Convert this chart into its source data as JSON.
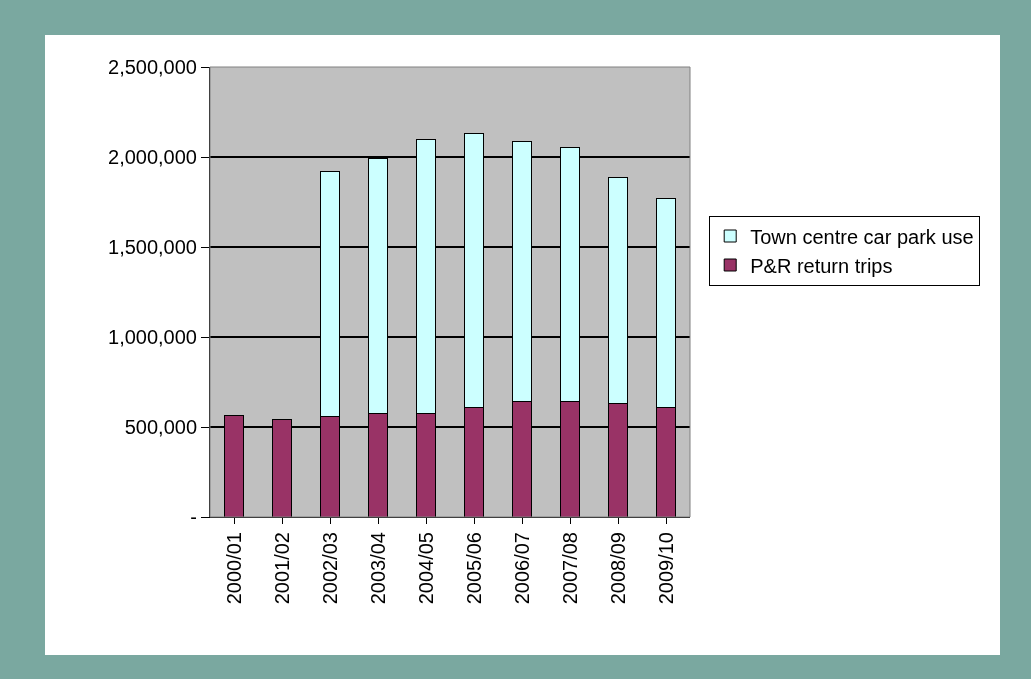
{
  "chart_data": {
    "type": "bar",
    "stacked": true,
    "categories": [
      "2000/01",
      "2001/02",
      "2002/03",
      "2003/04",
      "2004/05",
      "2005/06",
      "2006/07",
      "2007/08",
      "2008/09",
      "2009/10"
    ],
    "series": [
      {
        "name": "P&R return trips",
        "color": "#993366",
        "values": [
          565000,
          544000,
          556000,
          575000,
          575000,
          606000,
          640000,
          640000,
          628000,
          606000
        ]
      },
      {
        "name": "Town centre car park use",
        "color": "#ccffff",
        "values": [
          null,
          null,
          1361000,
          1416000,
          1521000,
          1524000,
          1445000,
          1415000,
          1258000,
          1165000
        ]
      }
    ],
    "ylim": [
      0,
      2500000
    ],
    "yticks": [
      {
        "value": 0,
        "label": "-"
      },
      {
        "value": 500000,
        "label": "500,000"
      },
      {
        "value": 1000000,
        "label": "1,000,000"
      },
      {
        "value": 1500000,
        "label": "1,500,000"
      },
      {
        "value": 2000000,
        "label": "2,000,000"
      },
      {
        "value": 2500000,
        "label": "2,500,000"
      }
    ],
    "grid": "y",
    "legend": "right"
  }
}
